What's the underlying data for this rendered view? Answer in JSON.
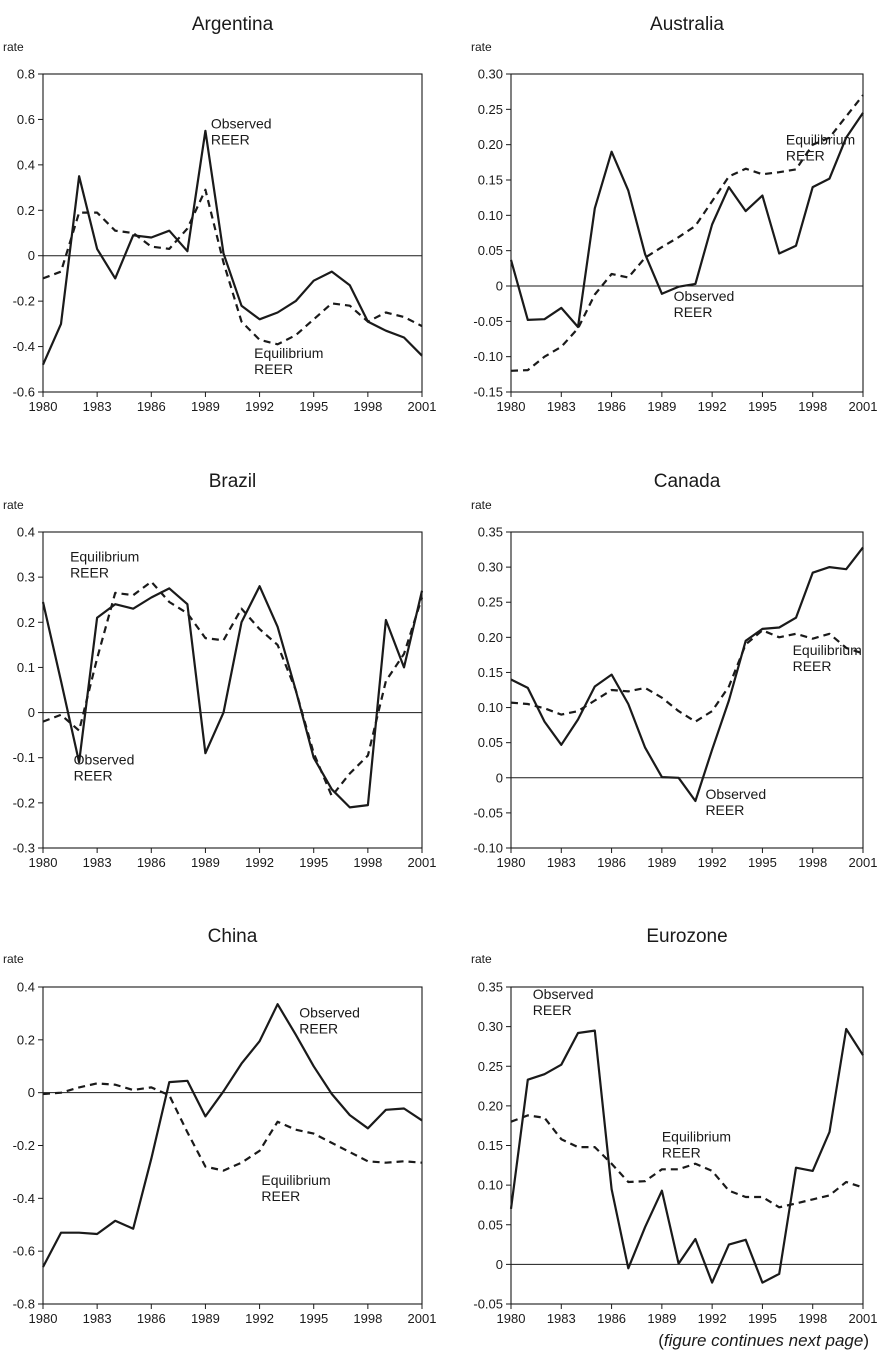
{
  "chart_data": [
    {
      "type": "line",
      "title": "Argentina",
      "ylabel": "rate",
      "ylim": [
        -0.6,
        0.8
      ],
      "yticks": [
        -0.6,
        -0.4,
        -0.2,
        0,
        0.2,
        0.4,
        0.6,
        0.8
      ],
      "ytick_labels": [
        "-0.6",
        "-0.4",
        "-0.2",
        "0",
        "0.2",
        "0.4",
        "0.6",
        "0.8"
      ],
      "xlim": [
        1980,
        2001
      ],
      "xticks": [
        1980,
        1983,
        1986,
        1989,
        1992,
        1995,
        1998,
        2001
      ],
      "xtick_labels": [
        "1980",
        "1983",
        "1986",
        "1989",
        "1992",
        "1995",
        "1998",
        "2001"
      ],
      "x": [
        1980,
        1981,
        1982,
        1983,
        1984,
        1985,
        1986,
        1987,
        1988,
        1989,
        1990,
        1991,
        1992,
        1993,
        1994,
        1995,
        1996,
        1997,
        1998,
        1999,
        2000,
        2001
      ],
      "series": [
        {
          "name": "Observed REER",
          "label_lines": [
            "Observed",
            "REER"
          ],
          "style": "solid",
          "values": [
            -0.48,
            -0.3,
            0.35,
            0.03,
            -0.1,
            0.09,
            0.08,
            0.11,
            0.02,
            0.55,
            0.01,
            -0.22,
            -0.28,
            -0.25,
            -0.2,
            -0.11,
            -0.07,
            -0.13,
            -0.29,
            -0.33,
            -0.36,
            -0.44
          ]
        },
        {
          "name": "Equilibrium REER",
          "label_lines": [
            "Equilibrium",
            "REER"
          ],
          "style": "dashed",
          "values": [
            -0.1,
            -0.07,
            0.19,
            0.19,
            0.11,
            0.1,
            0.04,
            0.03,
            0.12,
            0.29,
            -0.03,
            -0.29,
            -0.37,
            -0.39,
            -0.35,
            -0.28,
            -0.21,
            -0.22,
            -0.29,
            -0.25,
            -0.27,
            -0.31
          ]
        }
      ],
      "annotations": [
        {
          "series": 0,
          "x": 1989.3,
          "y": 0.56
        },
        {
          "series": 1,
          "x": 1991.7,
          "y": -0.45
        }
      ]
    },
    {
      "type": "line",
      "title": "Australia",
      "ylabel": "rate",
      "ylim": [
        -0.15,
        0.3
      ],
      "yticks": [
        -0.15,
        -0.1,
        -0.05,
        0,
        0.05,
        0.1,
        0.15,
        0.2,
        0.25,
        0.3
      ],
      "ytick_labels": [
        "-0.15",
        "-0.10",
        "-0.05",
        "0",
        "0.05",
        "0.10",
        "0.15",
        "0.20",
        "0.25",
        "0.30"
      ],
      "xlim": [
        1980,
        2001
      ],
      "xticks": [
        1980,
        1983,
        1986,
        1989,
        1992,
        1995,
        1998,
        2001
      ],
      "xtick_labels": [
        "1980",
        "1983",
        "1986",
        "1989",
        "1992",
        "1995",
        "1998",
        "2001"
      ],
      "x": [
        1980,
        1981,
        1982,
        1983,
        1984,
        1985,
        1986,
        1987,
        1988,
        1989,
        1990,
        1991,
        1992,
        1993,
        1994,
        1995,
        1996,
        1997,
        1998,
        1999,
        2000,
        2001
      ],
      "series": [
        {
          "name": "Observed REER",
          "label_lines": [
            "Observed",
            "REER"
          ],
          "style": "solid",
          "values": [
            0.037,
            -0.048,
            -0.047,
            -0.031,
            -0.058,
            0.11,
            0.19,
            0.135,
            0.045,
            -0.011,
            -0.001,
            0.003,
            0.087,
            0.14,
            0.106,
            0.128,
            0.046,
            0.057,
            0.14,
            0.152,
            0.21,
            0.245
          ]
        },
        {
          "name": "Equilibrium REER",
          "label_lines": [
            "Equilibrium",
            "REER"
          ],
          "style": "dashed",
          "values": [
            -0.12,
            -0.119,
            -0.1,
            -0.086,
            -0.06,
            -0.012,
            0.017,
            0.012,
            0.04,
            0.055,
            0.069,
            0.085,
            0.12,
            0.155,
            0.166,
            0.158,
            0.161,
            0.165,
            0.2,
            0.21,
            0.24,
            0.27
          ]
        }
      ],
      "annotations": [
        {
          "series": 0,
          "x": 1989.7,
          "y": -0.021
        },
        {
          "series": 1,
          "x": 1996.4,
          "y": 0.2
        }
      ]
    },
    {
      "type": "line",
      "title": "Brazil",
      "ylabel": "rate",
      "ylim": [
        -0.3,
        0.4
      ],
      "yticks": [
        -0.3,
        -0.2,
        -0.1,
        0,
        0.1,
        0.2,
        0.3,
        0.4
      ],
      "ytick_labels": [
        "-0.3",
        "-0.2",
        "-0.1",
        "0",
        "0.1",
        "0.2",
        "0.3",
        "0.4"
      ],
      "xlim": [
        1980,
        2001
      ],
      "xticks": [
        1980,
        1983,
        1986,
        1989,
        1992,
        1995,
        1998,
        2001
      ],
      "xtick_labels": [
        "1980",
        "1983",
        "1986",
        "1989",
        "1992",
        "1995",
        "1998",
        "2001"
      ],
      "x": [
        1980,
        1981,
        1982,
        1983,
        1984,
        1985,
        1986,
        1987,
        1988,
        1989,
        1990,
        1991,
        1992,
        1993,
        1994,
        1995,
        1996,
        1997,
        1998,
        1999,
        2000,
        2001
      ],
      "series": [
        {
          "name": "Observed REER",
          "label_lines": [
            "Observed",
            "REER"
          ],
          "style": "solid",
          "values": [
            0.245,
            0.07,
            -0.11,
            0.21,
            0.24,
            0.23,
            0.255,
            0.275,
            0.24,
            -0.09,
            0.0,
            0.2,
            0.28,
            0.19,
            0.05,
            -0.1,
            -0.17,
            -0.21,
            -0.205,
            0.205,
            0.1,
            0.27
          ]
        },
        {
          "name": "Equilibrium REER",
          "label_lines": [
            "Equilibrium",
            "REER"
          ],
          "style": "dashed",
          "values": [
            -0.02,
            -0.005,
            -0.04,
            0.12,
            0.265,
            0.26,
            0.29,
            0.245,
            0.22,
            0.165,
            0.16,
            0.23,
            0.185,
            0.15,
            0.05,
            -0.09,
            -0.185,
            -0.135,
            -0.095,
            0.07,
            0.13,
            0.255
          ]
        }
      ],
      "annotations": [
        {
          "series": 0,
          "x": 1981.7,
          "y": -0.115
        },
        {
          "series": 1,
          "x": 1981.5,
          "y": 0.335
        }
      ]
    },
    {
      "type": "line",
      "title": "Canada",
      "ylabel": "rate",
      "ylim": [
        -0.1,
        0.35
      ],
      "yticks": [
        -0.1,
        -0.05,
        0,
        0.05,
        0.1,
        0.15,
        0.2,
        0.25,
        0.3,
        0.35
      ],
      "ytick_labels": [
        "-0.10",
        "-0.05",
        "0",
        "0.05",
        "0.10",
        "0.15",
        "0.20",
        "0.25",
        "0.30",
        "0.35"
      ],
      "xlim": [
        1980,
        2001
      ],
      "xticks": [
        1980,
        1983,
        1986,
        1989,
        1992,
        1995,
        1998,
        2001
      ],
      "xtick_labels": [
        "1980",
        "1983",
        "1986",
        "1989",
        "1992",
        "1995",
        "1998",
        "2001"
      ],
      "x": [
        1980,
        1981,
        1982,
        1983,
        1984,
        1985,
        1986,
        1987,
        1988,
        1989,
        1990,
        1991,
        1992,
        1993,
        1994,
        1995,
        1996,
        1997,
        1998,
        1999,
        2000,
        2001
      ],
      "series": [
        {
          "name": "Observed REER",
          "label_lines": [
            "Observed",
            "REER"
          ],
          "style": "solid",
          "values": [
            0.14,
            0.128,
            0.08,
            0.047,
            0.083,
            0.13,
            0.147,
            0.105,
            0.043,
            0.001,
            0.0,
            -0.033,
            0.04,
            0.11,
            0.195,
            0.212,
            0.214,
            0.228,
            0.292,
            0.3,
            0.297,
            0.328
          ]
        },
        {
          "name": "Equilibrium REER",
          "label_lines": [
            "Equilibrium",
            "REER"
          ],
          "style": "dashed",
          "values": [
            0.107,
            0.105,
            0.099,
            0.09,
            0.095,
            0.11,
            0.125,
            0.123,
            0.128,
            0.114,
            0.095,
            0.08,
            0.095,
            0.13,
            0.19,
            0.21,
            0.2,
            0.205,
            0.198,
            0.205,
            0.185,
            0.177
          ]
        }
      ],
      "annotations": [
        {
          "series": 0,
          "x": 1991.6,
          "y": -0.03
        },
        {
          "series": 1,
          "x": 1996.8,
          "y": 0.175
        }
      ]
    },
    {
      "type": "line",
      "title": "China",
      "ylabel": "rate",
      "ylim": [
        -0.8,
        0.4
      ],
      "yticks": [
        -0.8,
        -0.6,
        -0.4,
        -0.2,
        0,
        0.2,
        0.4
      ],
      "ytick_labels": [
        "-0.8",
        "-0.6",
        "-0.4",
        "-0.2",
        "0",
        "0.2",
        "0.4"
      ],
      "xlim": [
        1980,
        2001
      ],
      "xticks": [
        1980,
        1983,
        1986,
        1989,
        1992,
        1995,
        1998,
        2001
      ],
      "xtick_labels": [
        "1980",
        "1983",
        "1986",
        "1989",
        "1992",
        "1995",
        "1998",
        "2001"
      ],
      "x": [
        1980,
        1981,
        1982,
        1983,
        1984,
        1985,
        1986,
        1987,
        1988,
        1989,
        1990,
        1991,
        1992,
        1993,
        1994,
        1995,
        1996,
        1997,
        1998,
        1999,
        2000,
        2001
      ],
      "series": [
        {
          "name": "Observed REER",
          "label_lines": [
            "Observed",
            "REER"
          ],
          "style": "solid",
          "values": [
            -0.66,
            -0.53,
            -0.53,
            -0.535,
            -0.485,
            -0.515,
            -0.25,
            0.04,
            0.045,
            -0.09,
            0.005,
            0.11,
            0.195,
            0.335,
            0.22,
            0.1,
            -0.005,
            -0.085,
            -0.135,
            -0.065,
            -0.06,
            -0.105
          ]
        },
        {
          "name": "Equilibrium REER",
          "label_lines": [
            "Equilibrium",
            "REER"
          ],
          "style": "dashed",
          "values": [
            -0.005,
            0.0,
            0.02,
            0.035,
            0.03,
            0.01,
            0.02,
            -0.01,
            -0.15,
            -0.28,
            -0.295,
            -0.265,
            -0.22,
            -0.11,
            -0.14,
            -0.155,
            -0.19,
            -0.225,
            -0.26,
            -0.265,
            -0.26,
            -0.265
          ]
        }
      ],
      "annotations": [
        {
          "series": 0,
          "x": 1994.2,
          "y": 0.285
        },
        {
          "series": 1,
          "x": 1992.1,
          "y": -0.35
        }
      ]
    },
    {
      "type": "line",
      "title": "Eurozone",
      "ylabel": "rate",
      "ylim": [
        -0.05,
        0.35
      ],
      "yticks": [
        -0.05,
        0,
        0.05,
        0.1,
        0.15,
        0.2,
        0.25,
        0.3,
        0.35
      ],
      "ytick_labels": [
        "-0.05",
        "0",
        "0.05",
        "0.10",
        "0.15",
        "0.20",
        "0.25",
        "0.30",
        "0.35"
      ],
      "xlim": [
        1980,
        2001
      ],
      "xticks": [
        1980,
        1983,
        1986,
        1989,
        1992,
        1995,
        1998,
        2001
      ],
      "xtick_labels": [
        "1980",
        "1983",
        "1986",
        "1989",
        "1992",
        "1995",
        "1998",
        "2001"
      ],
      "x": [
        1980,
        1981,
        1982,
        1983,
        1984,
        1985,
        1986,
        1987,
        1988,
        1989,
        1990,
        1991,
        1992,
        1993,
        1994,
        1995,
        1996,
        1997,
        1998,
        1999,
        2000,
        2001
      ],
      "series": [
        {
          "name": "Observed REER",
          "label_lines": [
            "Observed",
            "REER"
          ],
          "style": "solid",
          "values": [
            0.07,
            0.233,
            0.24,
            0.252,
            0.292,
            0.295,
            0.095,
            -0.005,
            0.047,
            0.093,
            0.001,
            0.032,
            -0.023,
            0.025,
            0.031,
            -0.023,
            -0.012,
            0.122,
            0.118,
            0.167,
            0.297,
            0.264
          ]
        },
        {
          "name": "Equilibrium REER",
          "label_lines": [
            "Equilibrium",
            "REER"
          ],
          "style": "dashed",
          "values": [
            0.18,
            0.188,
            0.185,
            0.158,
            0.148,
            0.148,
            0.127,
            0.104,
            0.105,
            0.12,
            0.12,
            0.127,
            0.118,
            0.093,
            0.085,
            0.085,
            0.072,
            0.077,
            0.082,
            0.087,
            0.104,
            0.097
          ]
        }
      ],
      "annotations": [
        {
          "series": 0,
          "x": 1981.3,
          "y": 0.335
        },
        {
          "series": 1,
          "x": 1989.0,
          "y": 0.155
        }
      ]
    }
  ],
  "footnote": {
    "prefix": "(",
    "italic": "figure continues next page",
    "suffix": ")"
  }
}
